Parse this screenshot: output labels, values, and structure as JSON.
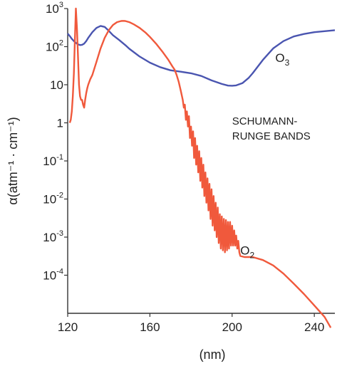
{
  "chart_data": {
    "type": "line",
    "title": "",
    "xlabel": "(nm)",
    "ylabel": "α(atm⁻¹ · cm⁻¹)",
    "x_scale": "linear",
    "y_scale": "log",
    "xlim": [
      120,
      250
    ],
    "ylim": [
      1e-05,
      1000
    ],
    "grid": false,
    "x_ticks": [
      {
        "value": 120,
        "label": "120"
      },
      {
        "value": 160,
        "label": "160"
      },
      {
        "value": 200,
        "label": "200"
      },
      {
        "value": 240,
        "label": "240"
      }
    ],
    "y_ticks": [
      {
        "value": 1000,
        "label": "10",
        "sup": "3"
      },
      {
        "value": 100,
        "label": "10",
        "sup": "2"
      },
      {
        "value": 10,
        "label": "10",
        "sup": ""
      },
      {
        "value": 1,
        "label": "1",
        "sup": ""
      },
      {
        "value": 0.1,
        "label": "10",
        "sup": "-1"
      },
      {
        "value": 0.01,
        "label": "10",
        "sup": "-2"
      },
      {
        "value": 0.001,
        "label": "10",
        "sup": "-3"
      },
      {
        "value": 0.0001,
        "label": "10",
        "sup": "-4"
      }
    ],
    "annotations": [
      {
        "lines": [
          "SCHUMANN-",
          "RUNGE BANDS"
        ],
        "x": 200,
        "y": 0.9
      }
    ],
    "series": [
      {
        "name": "O3",
        "name_sub": "3",
        "name_base": "O",
        "color": "#4a55b0",
        "label_at": {
          "x": 221,
          "y": 40
        },
        "x": [
          120,
          121,
          122,
          123,
          124,
          125,
          126,
          127,
          128,
          129,
          130,
          132,
          134,
          136,
          138,
          140,
          142,
          145,
          148,
          150,
          155,
          160,
          165,
          170,
          175,
          180,
          185,
          190,
          195,
          198,
          200,
          202,
          205,
          208,
          210,
          215,
          220,
          225,
          230,
          235,
          240,
          245,
          250
        ],
        "y": [
          220,
          190,
          160,
          140,
          125,
          115,
          110,
          112,
          120,
          140,
          170,
          240,
          310,
          350,
          330,
          260,
          200,
          150,
          110,
          88,
          55,
          38,
          29,
          24,
          22,
          20,
          17,
          13,
          10.5,
          9.5,
          9.4,
          9.6,
          11,
          15,
          20,
          45,
          90,
          140,
          185,
          215,
          240,
          255,
          270
        ]
      },
      {
        "name": "O2",
        "name_sub": "2",
        "name_base": "O",
        "color": "#f0593c",
        "label_at": {
          "x": 204,
          "y": 0.00035
        },
        "x": [
          121,
          121.5,
          122,
          122.5,
          123,
          123.5,
          124,
          124.5,
          125,
          125.5,
          126,
          126.5,
          127,
          127.5,
          128,
          128.5,
          129,
          129.5,
          130,
          131,
          132,
          134,
          136,
          138,
          140,
          142,
          144,
          146,
          147,
          148,
          150,
          152,
          155,
          158,
          160,
          163,
          166,
          169,
          171,
          172,
          173,
          174,
          175,
          176,
          176.5,
          177,
          177.5,
          178,
          178.5,
          179,
          179.5,
          180,
          180.5,
          181,
          181.5,
          182,
          182.5,
          183,
          183.5,
          184,
          184.5,
          185,
          185.5,
          186,
          186.5,
          187,
          187.5,
          188,
          188.5,
          189,
          189.5,
          190,
          190.5,
          191,
          191.5,
          192,
          192.5,
          193,
          193.5,
          194,
          194.5,
          195,
          195.5,
          196,
          196.5,
          197,
          197.5,
          198,
          198.5,
          199,
          199.5,
          200,
          200.5,
          201,
          201.5,
          202,
          202.5,
          203,
          203.5,
          204,
          206,
          210,
          215,
          220,
          225,
          230,
          235,
          240,
          245,
          248
        ],
        "y": [
          1,
          1.2,
          2,
          5,
          20,
          150,
          1000,
          300,
          60,
          10,
          5,
          4,
          4,
          3,
          2.5,
          4,
          6,
          8,
          10,
          14,
          18,
          40,
          90,
          170,
          270,
          370,
          440,
          470,
          475,
          470,
          440,
          390,
          310,
          230,
          180,
          120,
          75,
          45,
          30,
          25,
          18,
          12,
          7,
          4,
          2.5,
          3,
          1.2,
          2,
          0.8,
          1.5,
          0.4,
          0.8,
          0.25,
          0.6,
          0.12,
          0.4,
          0.08,
          0.25,
          0.05,
          0.18,
          0.03,
          0.12,
          0.02,
          0.08,
          0.012,
          0.05,
          0.008,
          0.035,
          0.005,
          0.025,
          0.003,
          0.018,
          0.002,
          0.012,
          0.0015,
          0.008,
          0.001,
          0.006,
          0.0007,
          0.004,
          0.0005,
          0.0035,
          0.00045,
          0.003,
          0.0004,
          0.0028,
          0.00045,
          0.0025,
          0.0005,
          0.0025,
          0.0006,
          0.002,
          0.0006,
          0.0015,
          0.0006,
          0.0011,
          0.0005,
          0.0008,
          0.0004,
          0.00032,
          0.0003,
          0.0003,
          0.00025,
          0.00018,
          0.00011,
          6e-05,
          3.2e-05,
          1.6e-05,
          8e-06,
          4.2e-06
        ]
      }
    ]
  }
}
